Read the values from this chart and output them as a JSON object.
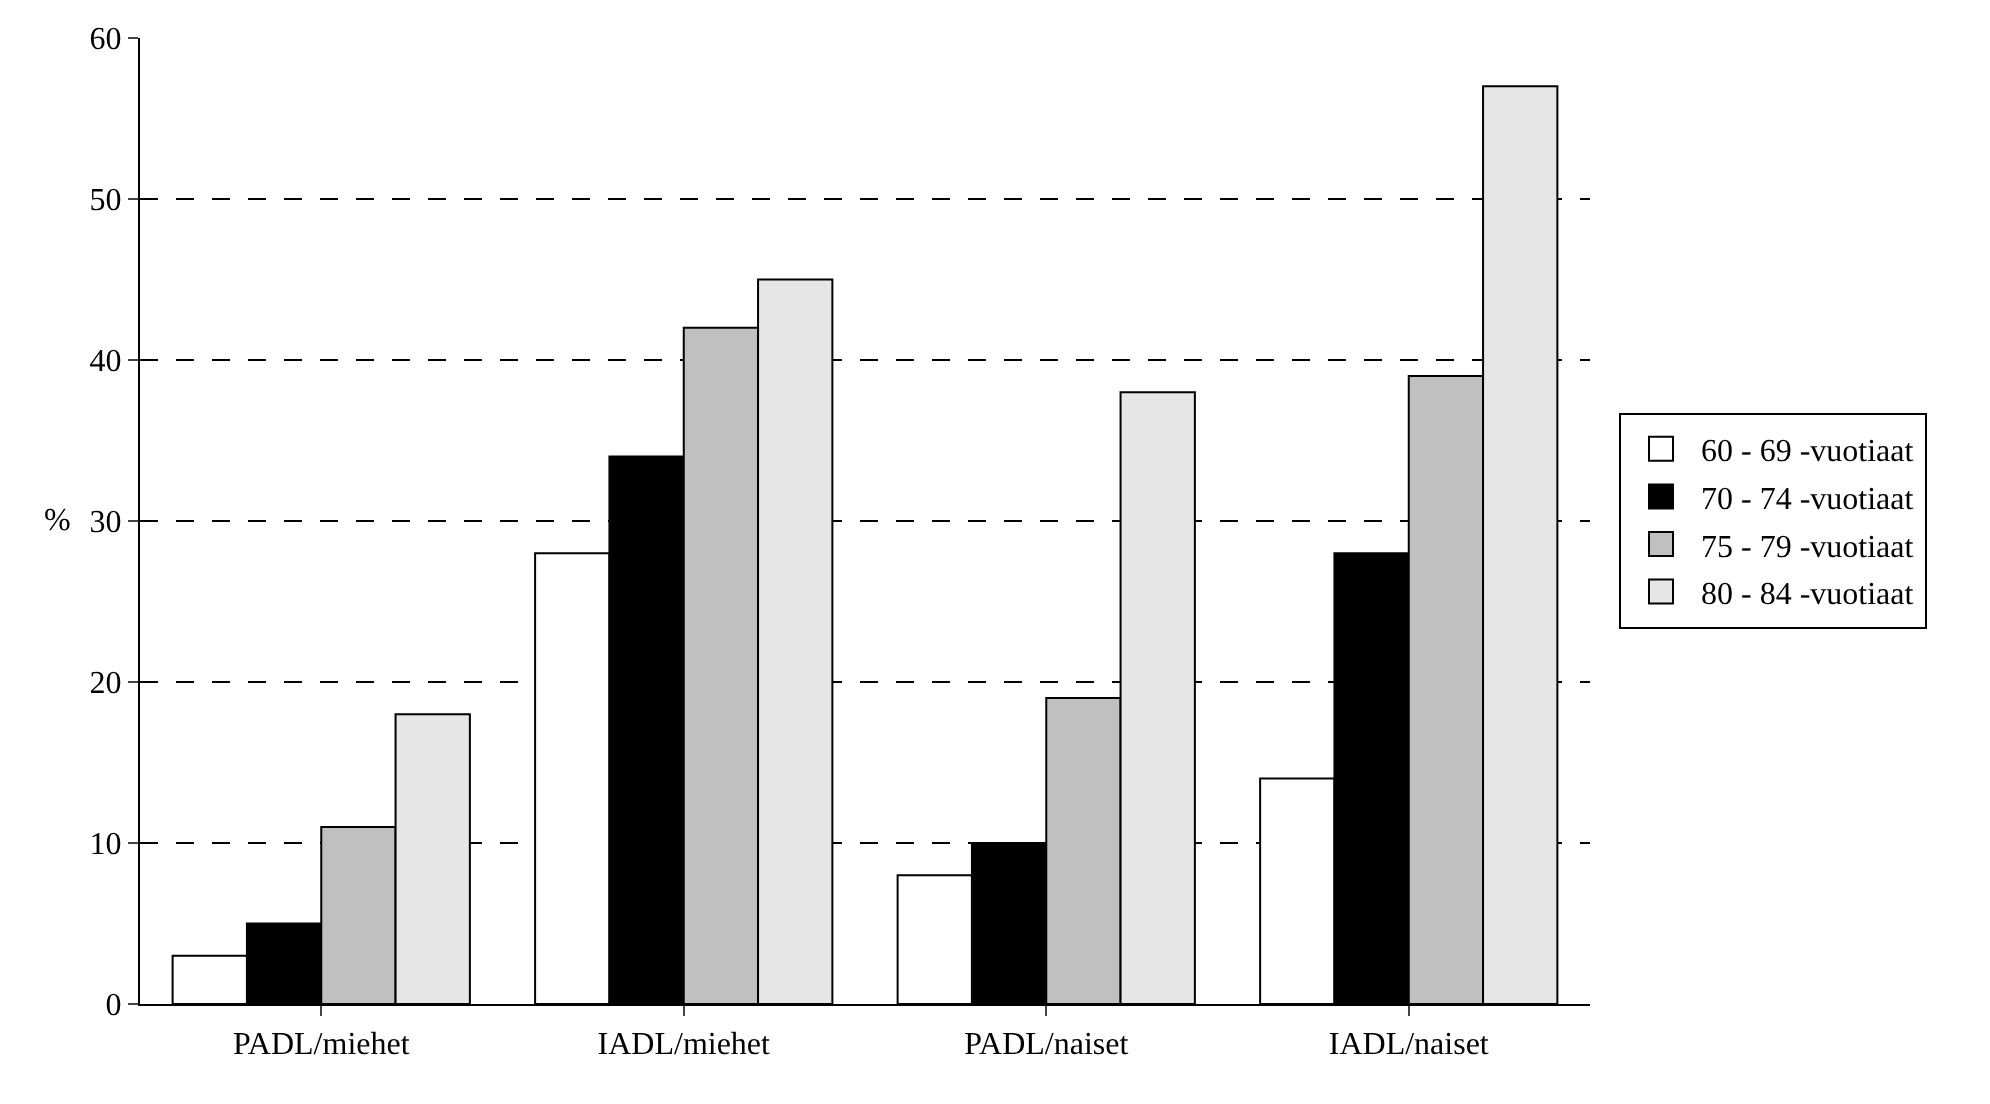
{
  "chart_data": {
    "type": "bar",
    "ylabel": "%",
    "categories": [
      "PADL/miehet",
      "IADL/miehet",
      "PADL/naiset",
      "IADL/naiset"
    ],
    "series": [
      {
        "name": "60 - 69 -vuotiaat",
        "color": "#ffffff",
        "values": [
          3,
          28,
          8,
          14
        ]
      },
      {
        "name": "70 - 74 -vuotiaat",
        "color": "#000000",
        "values": [
          5,
          34,
          10,
          28
        ]
      },
      {
        "name": "75 - 79 -vuotiaat",
        "color": "#c0c0c0",
        "values": [
          11,
          42,
          19,
          39
        ]
      },
      {
        "name": "80 - 84 -vuotiaat",
        "color": "#e6e6e6",
        "values": [
          18,
          45,
          38,
          57
        ]
      }
    ],
    "ylim": [
      0,
      60
    ],
    "yticks": [
      0,
      10,
      20,
      30,
      40,
      50,
      60
    ],
    "grid": "y",
    "legend": "right"
  }
}
